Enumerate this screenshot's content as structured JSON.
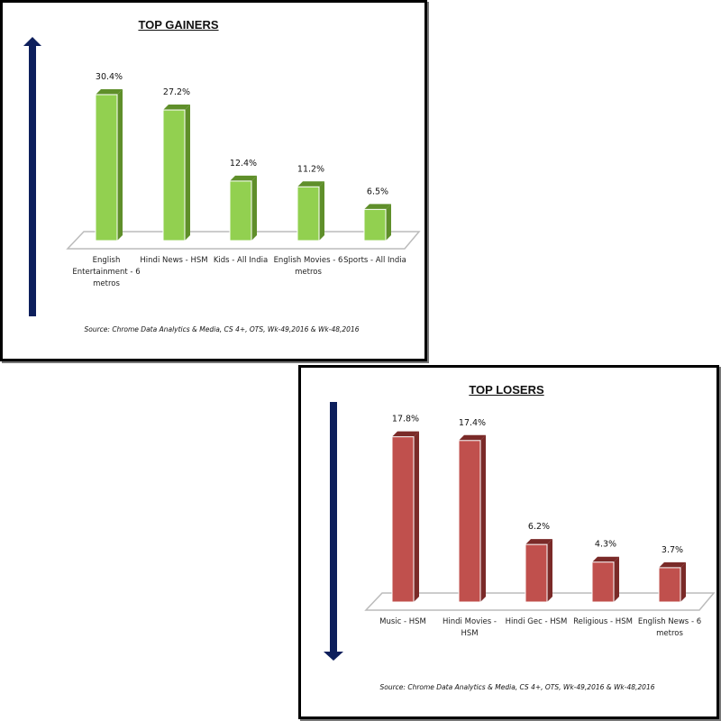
{
  "chart_data": [
    {
      "type": "bar",
      "title": "TOP GAINERS",
      "categories": [
        "English Entertainment - 6 metros",
        "Hindi News - HSM",
        "Kids - All India",
        "English Movies - 6 metros",
        "Sports - All India"
      ],
      "values": [
        30.4,
        27.2,
        12.4,
        11.2,
        6.5
      ],
      "value_labels": [
        "30.4%",
        "27.2%",
        "12.4%",
        "11.2%",
        "6.5%"
      ],
      "unit": "%",
      "source": "Source: Chrome Data Analytics & Media, CS 4+,  OTS, Wk-49,2016 & Wk-48,2016",
      "arrow_direction": "up",
      "bar_color": "#92d050",
      "bar_shade": "#5f8f2a",
      "arrow_color": "#0d1f5c",
      "grid": false,
      "legend": "none"
    },
    {
      "type": "bar",
      "title": "TOP LOSERS",
      "categories": [
        "Music - HSM",
        "Hindi Movies - HSM",
        "Hindi Gec - HSM",
        "Religious - HSM",
        "English News - 6 metros"
      ],
      "values": [
        17.8,
        17.4,
        6.2,
        4.3,
        3.7
      ],
      "value_labels": [
        "17.8%",
        "17.4%",
        "6.2%",
        "4.3%",
        "3.7%"
      ],
      "unit": "%",
      "source": "Source: Chrome Data Analytics & Media, CS 4+,  OTS, Wk-49,2016 & Wk-48,2016",
      "arrow_direction": "down",
      "bar_color": "#c0504d",
      "bar_shade": "#7a2a28",
      "arrow_color": "#0d1f5c",
      "grid": false,
      "legend": "none"
    }
  ]
}
